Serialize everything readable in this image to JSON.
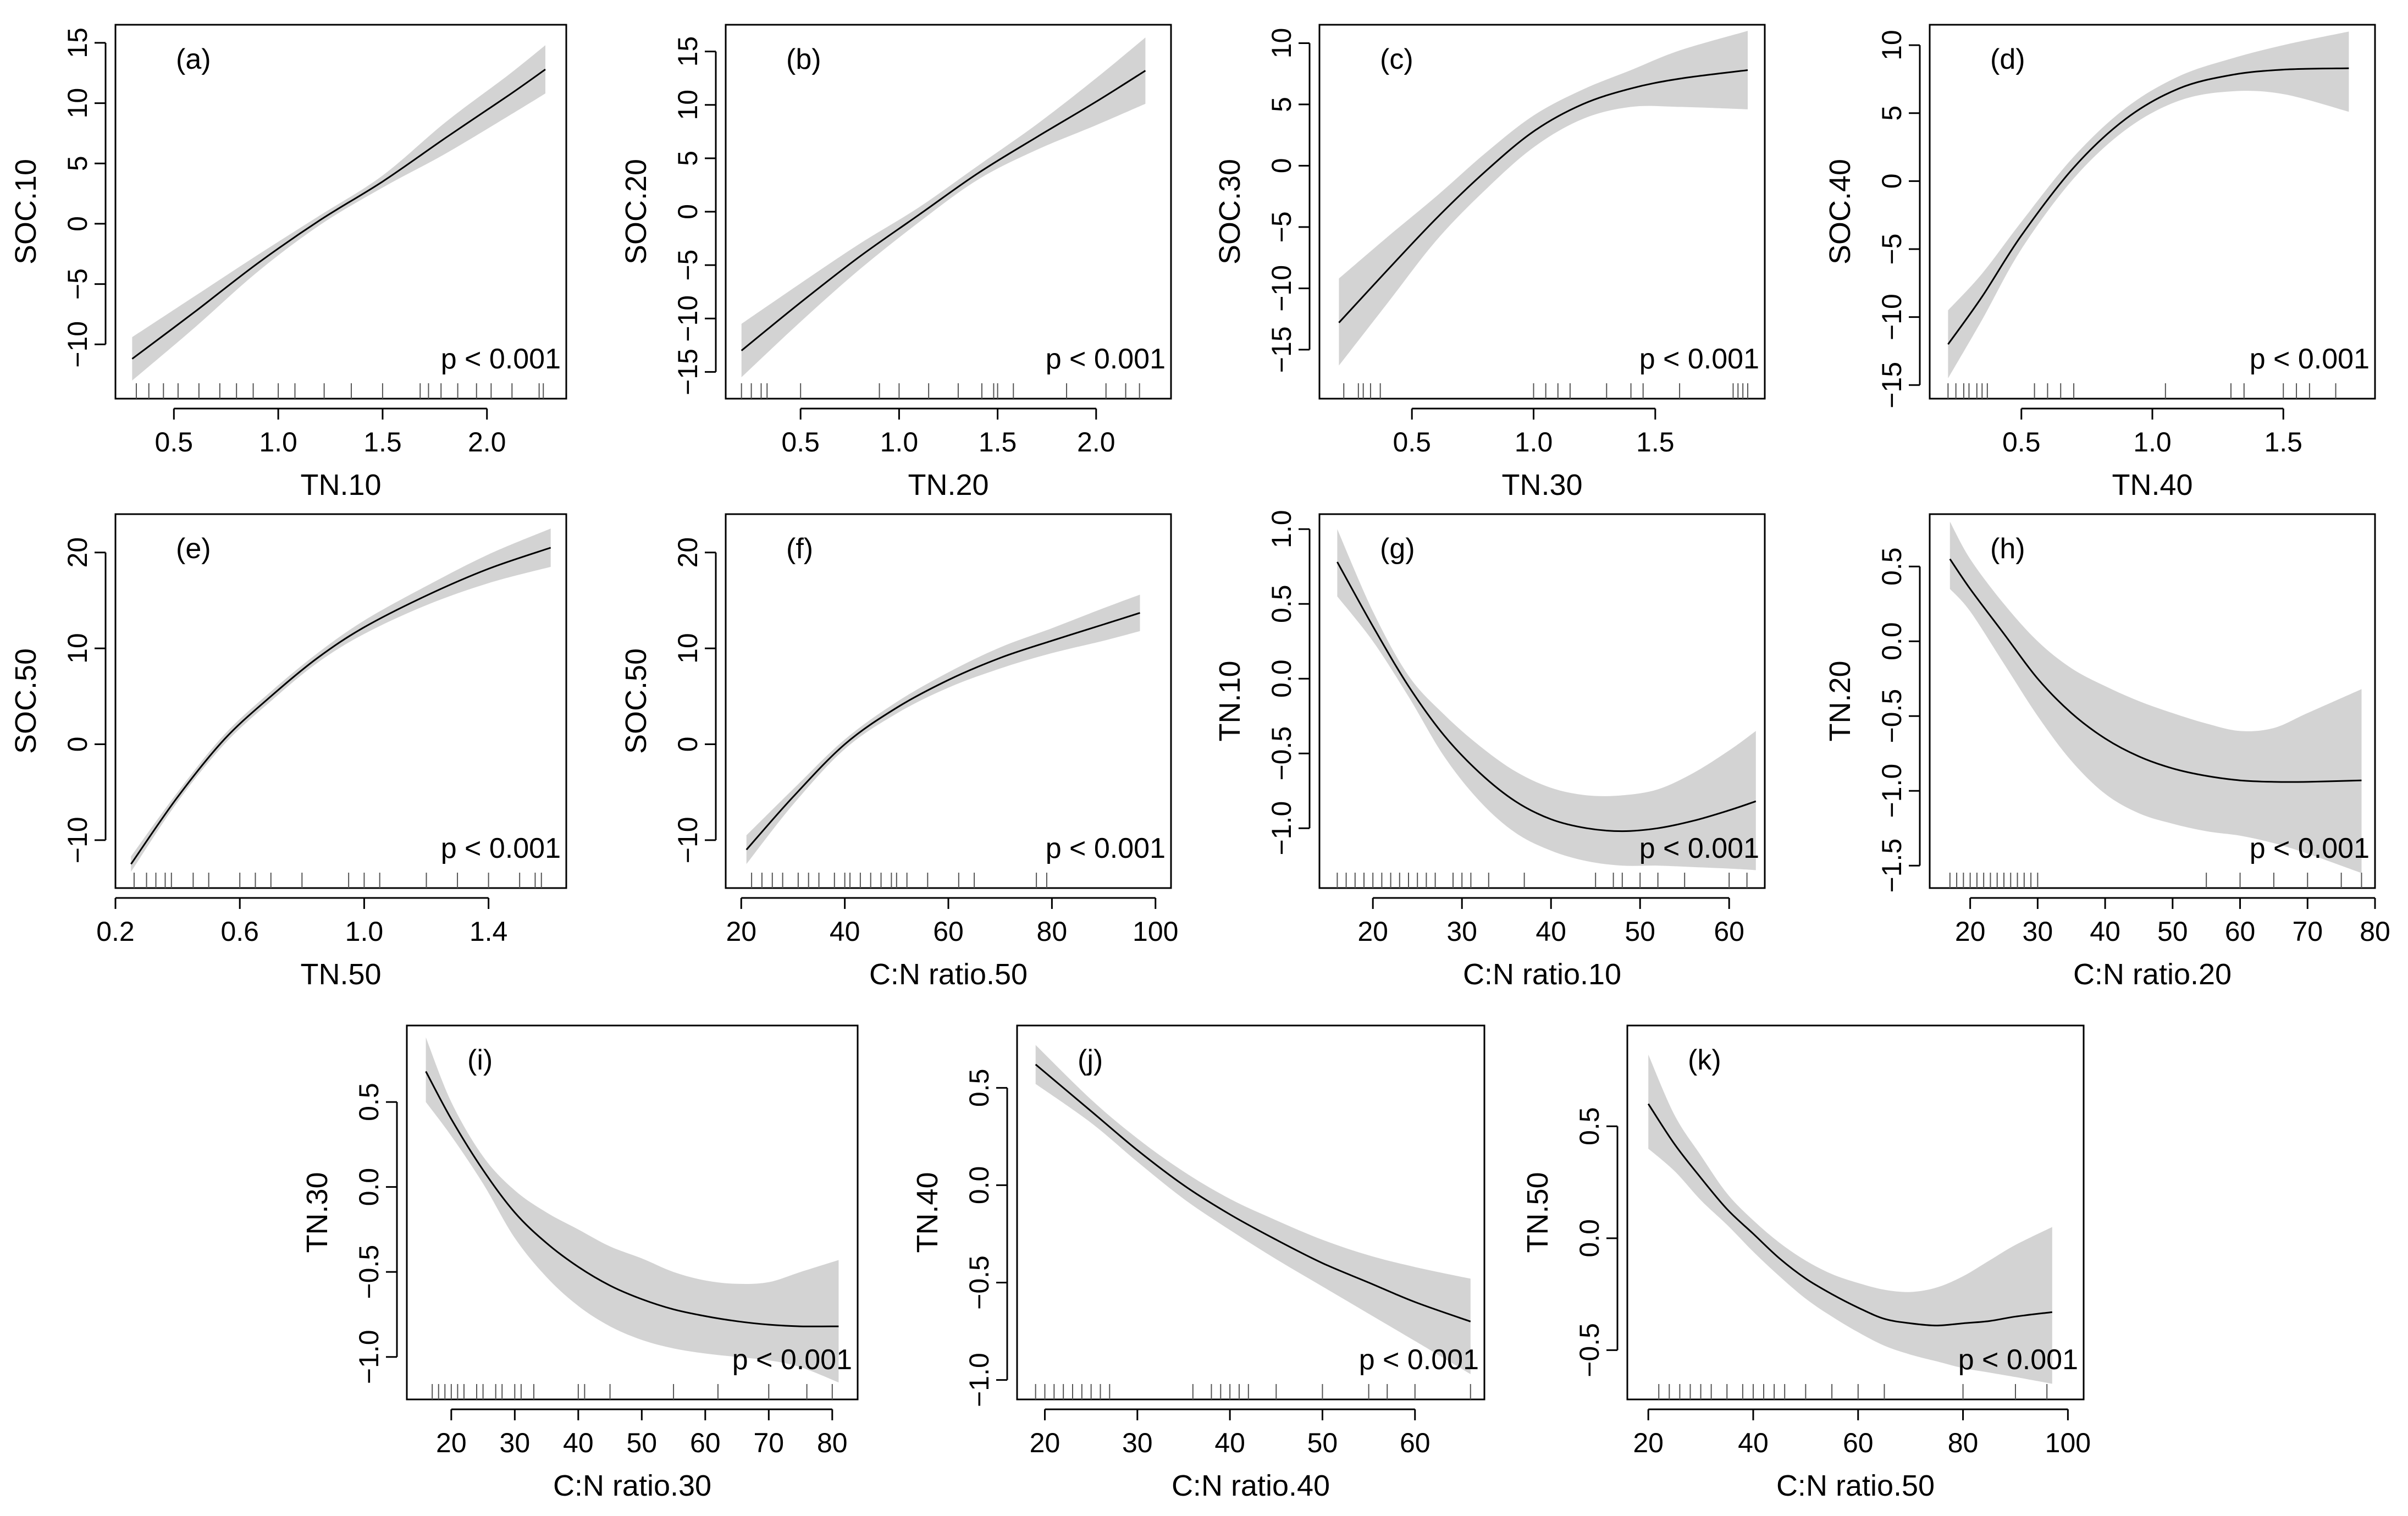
{
  "figure": {
    "colors": {
      "band": "#d3d3d3",
      "line": "#000000",
      "axis": "#000000",
      "rug": "#555555"
    }
  },
  "chart_data": [
    {
      "type": "line",
      "label": "(a)",
      "xlabel": "TN.10",
      "ylabel": "SOC.10",
      "p_text": "p < 0.001",
      "xlim": [
        0.22,
        2.38
      ],
      "ylim": [
        -14.5,
        16.5
      ],
      "xticks": [
        0.5,
        1.0,
        1.5,
        2.0
      ],
      "xtick_labels": [
        "0.5",
        "1.0",
        "1.5",
        "2.0"
      ],
      "yticks": [
        -10,
        -5,
        0,
        5,
        10,
        15
      ],
      "ytick_labels": [
        "−10",
        "−5",
        "0",
        "5",
        "10",
        "15"
      ],
      "x": [
        0.3,
        0.6,
        0.9,
        1.2,
        1.5,
        1.8,
        2.1,
        2.28
      ],
      "y": [
        -11.2,
        -7.3,
        -3.3,
        0.3,
        3.5,
        7.1,
        10.6,
        12.8
      ],
      "lower": [
        -13.0,
        -8.6,
        -4.0,
        -0.1,
        3.0,
        5.8,
        8.9,
        10.8
      ],
      "upper": [
        -9.4,
        -6.0,
        -2.6,
        0.7,
        4.0,
        8.4,
        12.3,
        14.8
      ],
      "rug": [
        0.32,
        0.38,
        0.45,
        0.52,
        0.62,
        0.72,
        0.8,
        0.88,
        1.0,
        1.08,
        1.22,
        1.35,
        1.5,
        1.68,
        1.72,
        1.78,
        1.86,
        1.95,
        2.02,
        2.12,
        2.25,
        2.27
      ]
    },
    {
      "type": "line",
      "label": "(b)",
      "xlabel": "TN.20",
      "ylabel": "SOC.20",
      "p_text": "p < 0.001",
      "xlim": [
        0.12,
        2.38
      ],
      "ylim": [
        -17.5,
        17.5
      ],
      "xticks": [
        0.5,
        1.0,
        1.5,
        2.0
      ],
      "xtick_labels": [
        "0.5",
        "1.0",
        "1.5",
        "2.0"
      ],
      "yticks": [
        -15,
        -10,
        -5,
        0,
        5,
        10,
        15
      ],
      "ytick_labels": [
        "−15",
        "−10",
        "−5",
        "0",
        "5",
        "10",
        "15"
      ],
      "x": [
        0.2,
        0.5,
        0.8,
        1.1,
        1.4,
        1.7,
        2.0,
        2.25
      ],
      "y": [
        -13.0,
        -8.5,
        -4.2,
        -0.3,
        3.6,
        7.0,
        10.3,
        13.2
      ],
      "lower": [
        -15.5,
        -10.3,
        -5.4,
        -1.0,
        3.0,
        5.8,
        8.1,
        10.1
      ],
      "upper": [
        -10.5,
        -6.7,
        -3.0,
        0.4,
        4.3,
        8.2,
        12.5,
        16.3
      ],
      "rug": [
        0.2,
        0.25,
        0.3,
        0.33,
        0.5,
        0.9,
        1.0,
        1.15,
        1.3,
        1.42,
        1.48,
        1.5,
        1.58,
        1.85,
        2.05,
        2.15,
        2.22
      ]
    },
    {
      "type": "line",
      "label": "(c)",
      "xlabel": "TN.30",
      "ylabel": "SOC.30",
      "p_text": "p < 0.001",
      "xlim": [
        0.12,
        1.95
      ],
      "ylim": [
        -19,
        11.5
      ],
      "xticks": [
        0.5,
        1.0,
        1.5
      ],
      "xtick_labels": [
        "0.5",
        "1.0",
        "1.5"
      ],
      "yticks": [
        -15,
        -10,
        -5,
        0,
        5,
        10
      ],
      "ytick_labels": [
        "−15",
        "−10",
        "−5",
        "0",
        "5",
        "10"
      ],
      "x": [
        0.2,
        0.4,
        0.6,
        0.8,
        1.0,
        1.2,
        1.4,
        1.6,
        1.88
      ],
      "y": [
        -12.8,
        -8.5,
        -4.3,
        -0.5,
        2.8,
        5.0,
        6.3,
        7.1,
        7.8
      ],
      "lower": [
        -16.3,
        -11.2,
        -6.1,
        -2.0,
        1.5,
        3.8,
        4.8,
        4.8,
        4.6
      ],
      "upper": [
        -9.2,
        -5.8,
        -2.5,
        1.0,
        4.1,
        6.2,
        7.8,
        9.4,
        11.0
      ],
      "rug": [
        0.22,
        0.28,
        0.3,
        0.33,
        0.37,
        1.0,
        1.05,
        1.1,
        1.15,
        1.3,
        1.4,
        1.45,
        1.6,
        1.82,
        1.84,
        1.86,
        1.88
      ]
    },
    {
      "type": "line",
      "label": "(d)",
      "xlabel": "TN.40",
      "ylabel": "SOC.40",
      "p_text": "p < 0.001",
      "xlim": [
        0.15,
        1.85
      ],
      "ylim": [
        -16,
        11.5
      ],
      "xticks": [
        0.5,
        1.0,
        1.5
      ],
      "xtick_labels": [
        "0.5",
        "1.0",
        "1.5"
      ],
      "yticks": [
        -15,
        -10,
        -5,
        0,
        5,
        10
      ],
      "ytick_labels": [
        "−15",
        "−10",
        "−5",
        "0",
        "5",
        "10"
      ],
      "x": [
        0.22,
        0.35,
        0.5,
        0.7,
        0.9,
        1.1,
        1.3,
        1.5,
        1.75
      ],
      "y": [
        -12.0,
        -8.5,
        -4.0,
        1.0,
        4.6,
        6.8,
        7.8,
        8.2,
        8.3
      ],
      "lower": [
        -14.5,
        -10.2,
        -5.0,
        0.2,
        3.8,
        5.9,
        6.6,
        6.4,
        5.1
      ],
      "upper": [
        -9.5,
        -6.8,
        -3.0,
        1.8,
        5.4,
        7.7,
        9.0,
        10.0,
        11.0
      ],
      "rug": [
        0.22,
        0.25,
        0.28,
        0.3,
        0.33,
        0.35,
        0.37,
        0.55,
        0.6,
        0.65,
        0.7,
        1.05,
        1.3,
        1.35,
        1.5,
        1.55,
        1.6,
        1.7
      ]
    },
    {
      "type": "line",
      "label": "(e)",
      "xlabel": "TN.50",
      "ylabel": "SOC.50",
      "p_text": "p < 0.001",
      "xlim": [
        0.2,
        1.65
      ],
      "ylim": [
        -15,
        24
      ],
      "xticks": [
        0.2,
        0.6,
        1.0,
        1.4
      ],
      "xtick_labels": [
        "0.2",
        "0.6",
        "1.0",
        "1.4"
      ],
      "yticks": [
        -10,
        0,
        10,
        20
      ],
      "ytick_labels": [
        "−10",
        "0",
        "10",
        "20"
      ],
      "x": [
        0.25,
        0.4,
        0.55,
        0.7,
        0.85,
        1.0,
        1.2,
        1.4,
        1.6
      ],
      "y": [
        -12.5,
        -5.5,
        0.5,
        5.0,
        9.0,
        12.2,
        15.5,
        18.3,
        20.5
      ],
      "lower": [
        -13.3,
        -6.0,
        0.0,
        4.5,
        8.5,
        11.5,
        14.5,
        16.8,
        18.5
      ],
      "upper": [
        -11.7,
        -5.0,
        1.0,
        5.5,
        9.5,
        12.9,
        16.5,
        19.8,
        22.5
      ],
      "rug": [
        0.26,
        0.3,
        0.33,
        0.36,
        0.38,
        0.45,
        0.5,
        0.6,
        0.65,
        0.7,
        0.8,
        0.95,
        1.0,
        1.05,
        1.2,
        1.3,
        1.4,
        1.5,
        1.55,
        1.57
      ]
    },
    {
      "type": "line",
      "label": "(f)",
      "xlabel": "C:N ratio.50",
      "ylabel": "SOC.50",
      "p_text": "p < 0.001",
      "xlim": [
        17,
        103
      ],
      "ylim": [
        -15,
        24
      ],
      "xticks": [
        20,
        40,
        60,
        80,
        100
      ],
      "xtick_labels": [
        "20",
        "40",
        "60",
        "80",
        "100"
      ],
      "yticks": [
        -10,
        0,
        10,
        20
      ],
      "ytick_labels": [
        "−10",
        "0",
        "10",
        "20"
      ],
      "x": [
        21,
        30,
        40,
        50,
        60,
        70,
        80,
        90,
        97
      ],
      "y": [
        -11.0,
        -5.5,
        0.0,
        3.8,
        6.7,
        9.0,
        10.8,
        12.5,
        13.7
      ],
      "lower": [
        -12.5,
        -6.3,
        -0.5,
        3.2,
        5.9,
        7.9,
        9.5,
        10.8,
        11.8
      ],
      "upper": [
        -9.5,
        -4.7,
        0.5,
        4.4,
        7.5,
        10.1,
        12.1,
        14.2,
        15.6
      ],
      "rug": [
        22,
        24,
        26,
        28,
        31,
        33,
        35,
        38,
        40,
        41,
        43,
        45,
        47,
        49,
        50,
        52,
        56,
        62,
        65,
        77,
        79
      ]
    },
    {
      "type": "line",
      "label": "(g)",
      "xlabel": "C:N ratio.10",
      "ylabel": "TN.10",
      "p_text": "p < 0.001",
      "xlim": [
        14,
        64
      ],
      "ylim": [
        -1.4,
        1.1
      ],
      "xticks": [
        20,
        30,
        40,
        50,
        60
      ],
      "xtick_labels": [
        "20",
        "30",
        "40",
        "50",
        "60"
      ],
      "yticks": [
        -1.0,
        -0.5,
        0.0,
        0.5,
        1.0
      ],
      "ytick_labels": [
        "−1.0",
        "−0.5",
        "0.0",
        "0.5",
        "1.0"
      ],
      "x": [
        16,
        20,
        24,
        28,
        32,
        36,
        40,
        44,
        48,
        52,
        56,
        60,
        63
      ],
      "y": [
        0.78,
        0.35,
        -0.05,
        -0.38,
        -0.63,
        -0.82,
        -0.94,
        -1.0,
        -1.02,
        -1.0,
        -0.95,
        -0.88,
        -0.82
      ],
      "lower": [
        0.55,
        0.25,
        -0.12,
        -0.52,
        -0.82,
        -1.03,
        -1.15,
        -1.22,
        -1.25,
        -1.25,
        -1.26,
        -1.27,
        -1.28
      ],
      "upper": [
        1.0,
        0.45,
        0.02,
        -0.24,
        -0.45,
        -0.62,
        -0.73,
        -0.78,
        -0.78,
        -0.74,
        -0.63,
        -0.48,
        -0.35
      ],
      "rug": [
        16,
        17,
        18,
        19,
        20,
        21,
        22,
        23,
        24,
        25,
        26,
        27,
        29,
        30,
        31,
        33,
        37,
        45,
        47,
        48,
        50,
        52,
        55,
        60,
        62
      ]
    },
    {
      "type": "line",
      "label": "(h)",
      "xlabel": "C:N ratio.20",
      "ylabel": "TN.20",
      "p_text": "p < 0.001",
      "xlim": [
        14,
        80
      ],
      "ylim": [
        -1.65,
        0.85
      ],
      "xticks": [
        20,
        30,
        40,
        50,
        60,
        70,
        80
      ],
      "xtick_labels": [
        "20",
        "30",
        "40",
        "50",
        "60",
        "70",
        "80"
      ],
      "yticks": [
        -1.5,
        -1.0,
        -0.5,
        0.0,
        0.5
      ],
      "ytick_labels": [
        "−1.5",
        "−1.0",
        "−0.5",
        "0.0",
        "0.5"
      ],
      "x": [
        17,
        20,
        25,
        30,
        35,
        40,
        45,
        50,
        55,
        60,
        65,
        70,
        78
      ],
      "y": [
        0.55,
        0.35,
        0.05,
        -0.25,
        -0.48,
        -0.65,
        -0.77,
        -0.85,
        -0.9,
        -0.93,
        -0.94,
        -0.94,
        -0.93
      ],
      "lower": [
        0.35,
        0.2,
        -0.15,
        -0.5,
        -0.8,
        -1.02,
        -1.15,
        -1.22,
        -1.27,
        -1.3,
        -1.35,
        -1.42,
        -1.55
      ],
      "upper": [
        0.8,
        0.55,
        0.25,
        0.0,
        -0.18,
        -0.3,
        -0.4,
        -0.48,
        -0.55,
        -0.6,
        -0.58,
        -0.48,
        -0.32
      ],
      "rug": [
        17,
        18,
        19,
        20,
        21,
        22,
        23,
        24,
        25,
        26,
        27,
        28,
        29,
        30,
        55,
        60,
        65,
        70,
        75,
        78
      ]
    },
    {
      "type": "line",
      "label": "(i)",
      "xlabel": "C:N ratio.30",
      "ylabel": "TN.30",
      "p_text": "p < 0.001",
      "xlim": [
        13,
        84
      ],
      "ylim": [
        -1.25,
        0.95
      ],
      "xticks": [
        20,
        30,
        40,
        50,
        60,
        70,
        80
      ],
      "xtick_labels": [
        "20",
        "30",
        "40",
        "50",
        "60",
        "70",
        "80"
      ],
      "yticks": [
        -1.0,
        -0.5,
        0.0,
        0.5
      ],
      "ytick_labels": [
        "−1.0",
        "−0.5",
        "0.0",
        "0.5"
      ],
      "x": [
        16,
        20,
        25,
        30,
        35,
        40,
        45,
        50,
        55,
        60,
        65,
        70,
        75,
        81
      ],
      "y": [
        0.68,
        0.4,
        0.1,
        -0.15,
        -0.33,
        -0.47,
        -0.58,
        -0.66,
        -0.72,
        -0.76,
        -0.79,
        -0.81,
        -0.82,
        -0.82
      ],
      "lower": [
        0.5,
        0.3,
        0.02,
        -0.3,
        -0.53,
        -0.7,
        -0.82,
        -0.9,
        -0.95,
        -0.98,
        -1.0,
        -1.02,
        -1.06,
        -1.15
      ],
      "upper": [
        0.88,
        0.5,
        0.18,
        -0.02,
        -0.15,
        -0.25,
        -0.35,
        -0.42,
        -0.5,
        -0.55,
        -0.57,
        -0.56,
        -0.5,
        -0.43
      ],
      "rug": [
        17,
        18,
        19,
        20,
        21,
        22,
        24,
        25,
        27,
        28,
        30,
        31,
        33,
        40,
        41,
        45,
        55,
        62,
        70,
        76,
        80
      ]
    },
    {
      "type": "line",
      "label": "(j)",
      "xlabel": "C:N ratio.40",
      "ylabel": "TN.40",
      "p_text": "p < 0.001",
      "xlim": [
        17,
        67.5
      ],
      "ylim": [
        -1.1,
        0.82
      ],
      "xticks": [
        20,
        30,
        40,
        50,
        60
      ],
      "xtick_labels": [
        "20",
        "30",
        "40",
        "50",
        "60"
      ],
      "yticks": [
        -1.0,
        -0.5,
        0.0,
        0.5
      ],
      "ytick_labels": [
        "−1.0",
        "−0.5",
        "0.0",
        "0.5"
      ],
      "x": [
        19,
        25,
        30,
        35,
        40,
        45,
        50,
        55,
        60,
        66
      ],
      "y": [
        0.62,
        0.38,
        0.18,
        0.0,
        -0.15,
        -0.28,
        -0.4,
        -0.5,
        -0.6,
        -0.7
      ],
      "lower": [
        0.52,
        0.32,
        0.12,
        -0.07,
        -0.23,
        -0.38,
        -0.52,
        -0.66,
        -0.8,
        -0.97
      ],
      "upper": [
        0.72,
        0.44,
        0.24,
        0.07,
        -0.07,
        -0.18,
        -0.28,
        -0.36,
        -0.42,
        -0.48
      ],
      "rug": [
        19,
        20,
        21,
        22,
        23,
        24,
        25,
        26,
        27,
        36,
        38,
        39,
        40,
        41,
        42,
        45,
        50,
        55,
        57,
        60,
        66
      ]
    },
    {
      "type": "line",
      "label": "(k)",
      "xlabel": "C:N ratio.50",
      "ylabel": "TN.50",
      "p_text": "p < 0.001",
      "xlim": [
        16,
        103
      ],
      "ylim": [
        -0.72,
        0.95
      ],
      "xticks": [
        20,
        40,
        60,
        80,
        100
      ],
      "xtick_labels": [
        "20",
        "40",
        "60",
        "80",
        "100"
      ],
      "yticks": [
        -0.5,
        0.0,
        0.5
      ],
      "ytick_labels": [
        "−0.5",
        "0.0",
        "0.5"
      ],
      "x": [
        20,
        25,
        30,
        35,
        40,
        45,
        50,
        55,
        60,
        65,
        70,
        75,
        80,
        85,
        90,
        97
      ],
      "y": [
        0.6,
        0.42,
        0.27,
        0.13,
        0.02,
        -0.09,
        -0.18,
        -0.25,
        -0.31,
        -0.36,
        -0.38,
        -0.39,
        -0.38,
        -0.37,
        -0.35,
        -0.33
      ],
      "lower": [
        0.4,
        0.3,
        0.17,
        0.06,
        -0.06,
        -0.17,
        -0.27,
        -0.35,
        -0.42,
        -0.48,
        -0.52,
        -0.55,
        -0.58,
        -0.6,
        -0.62,
        -0.65
      ],
      "upper": [
        0.82,
        0.55,
        0.37,
        0.2,
        0.08,
        -0.02,
        -0.1,
        -0.16,
        -0.2,
        -0.23,
        -0.24,
        -0.22,
        -0.17,
        -0.1,
        -0.03,
        0.05
      ],
      "rug": [
        22,
        24,
        26,
        28,
        30,
        32,
        35,
        38,
        40,
        42,
        44,
        46,
        50,
        55,
        60,
        65,
        80,
        90,
        96
      ]
    }
  ]
}
